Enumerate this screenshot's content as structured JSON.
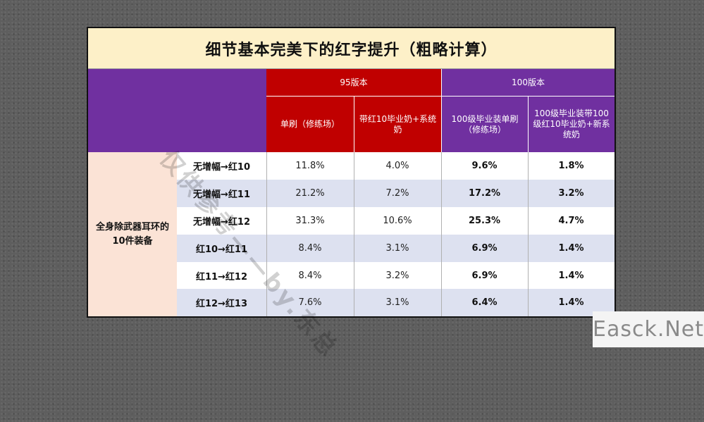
{
  "title": "细节基本完美下的红字提升（粗略计算）",
  "headers": {
    "v95": "95版本",
    "v100": "100版本",
    "cols": [
      "单刷（修练场）",
      "带红10毕业奶+系统奶",
      "100级毕业装单刷（修练场）",
      "100级毕业装带100级红10毕业奶+新系统奶"
    ]
  },
  "group_label": "全身除武器耳环的10件装备",
  "rows": [
    {
      "label": "无增幅→红10",
      "values": [
        "11.8%",
        "4.0%",
        "9.6%",
        "1.8%"
      ]
    },
    {
      "label": "无增幅→红11",
      "values": [
        "21.2%",
        "7.2%",
        "17.2%",
        "3.2%"
      ]
    },
    {
      "label": "无增幅→红12",
      "values": [
        "31.3%",
        "10.6%",
        "25.3%",
        "4.7%"
      ]
    },
    {
      "label": "红10→红11",
      "values": [
        "8.4%",
        "3.1%",
        "6.9%",
        "1.4%"
      ]
    },
    {
      "label": "红11→红12",
      "values": [
        "8.4%",
        "3.2%",
        "6.9%",
        "1.4%"
      ]
    },
    {
      "label": "红12→红13",
      "values": [
        "7.6%",
        "3.1%",
        "6.4%",
        "1.4%"
      ]
    }
  ],
  "diagonal_watermark": "仅供参考——by.东总",
  "corner_watermark": "Easck.Net",
  "colors": {
    "purple": "#7030a0",
    "red": "#c00000",
    "title_bg": "#fdf0c8",
    "group_bg": "#fbe3d6",
    "stripe": "#dde1f0"
  }
}
